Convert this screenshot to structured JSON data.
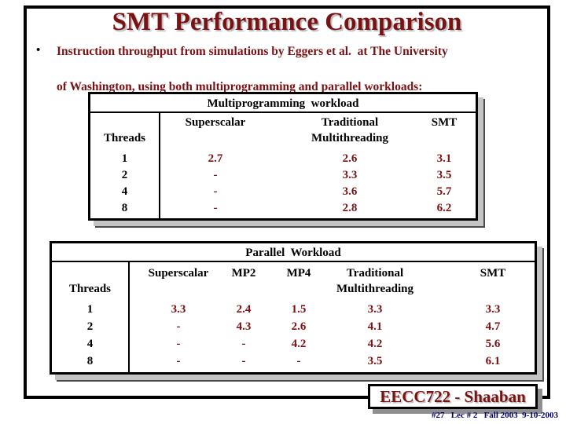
{
  "slide": {
    "title": "SMT Performance Comparison",
    "bullet": {
      "marker": "•",
      "line1": "Instruction throughput from simulations by Eggers et al.  at The University",
      "line2": "of Washington, using both multiprogramming and parallel workloads:"
    }
  },
  "tables": [
    {
      "title": "Multiprogramming  workload",
      "threads_label": "Threads",
      "threads": [
        "1",
        "2",
        "4",
        "8"
      ],
      "cols": [
        {
          "h1": "Superscalar",
          "h2": "",
          "values": [
            "2.7",
            "-",
            "-",
            "-"
          ]
        },
        {
          "h1": "Traditional",
          "h2": "Multithreading",
          "values": [
            "2.6",
            "3.3",
            "3.6",
            "2.8"
          ]
        },
        {
          "h1": "SMT",
          "h2": "",
          "values": [
            "3.1",
            "3.5",
            "5.7",
            "6.2"
          ]
        }
      ]
    },
    {
      "title": "Parallel  Workload",
      "threads_label": "Threads",
      "threads": [
        "1",
        "2",
        "4",
        "8"
      ],
      "cols": [
        {
          "h1": "Superscalar",
          "h2": "",
          "values": [
            "3.3",
            "-",
            "-",
            "-"
          ]
        },
        {
          "h1": "MP2",
          "h2": "",
          "values": [
            "2.4",
            "4.3",
            "-",
            "-"
          ]
        },
        {
          "h1": "MP4",
          "h2": "",
          "values": [
            "1.5",
            "2.6",
            "4.2",
            "-"
          ]
        },
        {
          "h1": "Traditional",
          "h2": "Multithreading",
          "values": [
            "3.3",
            "4.1",
            "4.2",
            "3.5"
          ]
        },
        {
          "h1": "SMT",
          "h2": "",
          "values": [
            "3.3",
            "4.7",
            "5.6",
            "6.1"
          ]
        }
      ]
    }
  ],
  "footer": {
    "course": "EECC722 - Shaaban",
    "meta": "#27   Lec # 2   Fall 2003  9-10-2003"
  },
  "colors": {
    "text_maroon": "#7a1113",
    "meta_navy": "#000073",
    "table_text_black": "#000000",
    "table_shadow_gray": "#c4c4c4",
    "footer_shadow_gray": "#8f8f8f",
    "title_shadow_gray": "#b9b9b9"
  }
}
